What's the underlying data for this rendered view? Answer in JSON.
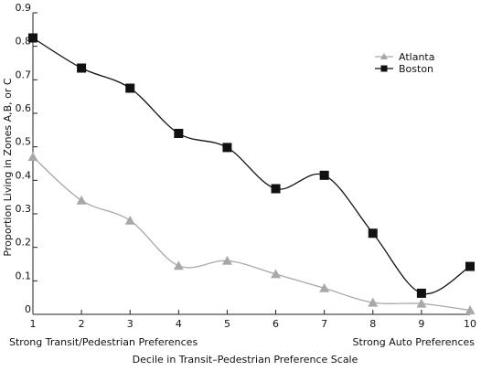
{
  "chart_data": {
    "type": "line",
    "x": [
      1,
      2,
      3,
      4,
      5,
      6,
      7,
      8,
      9,
      10
    ],
    "series": [
      {
        "name": "Atlanta",
        "color": "#a8a8a8",
        "marker": "triangle",
        "values": [
          0.47,
          0.34,
          0.28,
          0.145,
          0.16,
          0.12,
          0.078,
          0.035,
          0.032,
          0.012
        ]
      },
      {
        "name": "Boston",
        "color": "#111111",
        "marker": "square",
        "values": [
          0.825,
          0.735,
          0.675,
          0.54,
          0.498,
          0.375,
          0.415,
          0.242,
          0.063,
          0.143
        ]
      }
    ],
    "xlabel": "Decile in Transit–Pedestrian Preference Scale",
    "ylabel": "Proportion Living in Zones A,B, or C",
    "xlim": [
      1,
      10
    ],
    "ylim": [
      0,
      0.9
    ],
    "yticks": [
      0,
      0.1,
      0.2,
      0.3,
      0.4,
      0.5,
      0.6,
      0.7,
      0.8,
      0.9
    ],
    "ytick_labels": [
      "0",
      "0.1",
      "0.2",
      "0.3",
      "0.4",
      "0.5",
      "0.6",
      "0.7",
      "0.8",
      "0.9"
    ],
    "xticks": [
      1,
      2,
      3,
      4,
      5,
      6,
      7,
      8,
      9,
      10
    ],
    "xtick_labels": [
      "1",
      "2",
      "3",
      "4",
      "5",
      "6",
      "7",
      "8",
      "9",
      "10"
    ],
    "x_end_labels": {
      "left": "Strong Transit/Pedestrian Preferences",
      "right": "Strong Auto Preferences"
    },
    "legend_position": "top-right",
    "grid": false
  }
}
